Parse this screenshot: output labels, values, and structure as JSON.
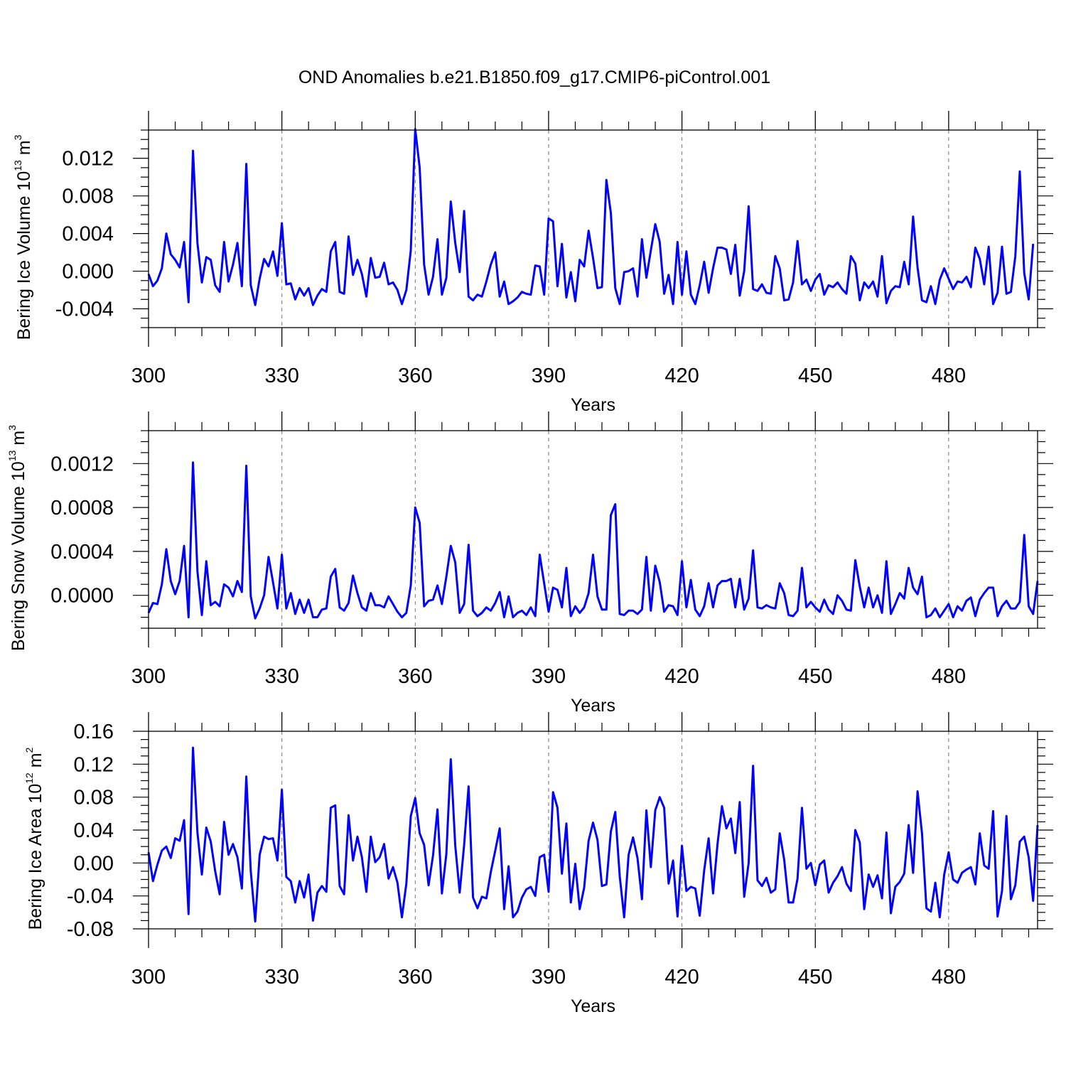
{
  "title": "OND Anomalies b.e21.B1850.f09_g17.CMIP6-piControl.001",
  "colors": {
    "line": "#0000ff",
    "axis": "#000000",
    "grid": "#000000"
  },
  "chart_data": [
    {
      "type": "line",
      "xlabel": "Years",
      "ylabel": {
        "prefix": "Bering Ice Volume 10",
        "sup1": "13",
        "mid": " m",
        "sup2": "3"
      },
      "xlim": [
        300,
        500
      ],
      "ylim": [
        -0.006,
        0.015
      ],
      "xticks": [
        300,
        330,
        360,
        390,
        420,
        450,
        480
      ],
      "xtick_labels": [
        "300",
        "330",
        "360",
        "390",
        "420",
        "450",
        "480"
      ],
      "yticks": [
        -0.004,
        0.0,
        0.004,
        0.008,
        0.012
      ],
      "ytick_labels": [
        "-0.004",
        "0.000",
        "0.004",
        "0.008",
        "0.012"
      ],
      "grid": "vertical dashed at x ticks",
      "series": [
        {
          "x_start": 300,
          "values": [
            -0.0003,
            -0.0016,
            -0.001,
            0.0003,
            0.004,
            0.0018,
            0.0012,
            0.0004,
            0.0031,
            -0.0033,
            0.0128,
            0.003,
            -0.0012,
            0.0015,
            0.0012,
            -0.0015,
            -0.0022,
            0.0031,
            -0.0011,
            0.0007,
            0.003,
            -0.0016,
            0.0114,
            -0.0015,
            -0.0036,
            -0.0008,
            0.0013,
            0.0005,
            0.0021,
            -0.0005,
            0.0051,
            -0.0014,
            -0.0013,
            -0.003,
            -0.0018,
            -0.0026,
            -0.0018,
            -0.0036,
            -0.0026,
            -0.0019,
            -0.0022,
            0.0021,
            0.0031,
            -0.0022,
            -0.0024,
            0.0037,
            -0.0004,
            0.0012,
            -0.0003,
            -0.0027,
            0.0014,
            -0.0007,
            -0.0006,
            0.0009,
            -0.0014,
            -0.0012,
            -0.002,
            -0.0035,
            -0.002,
            0.0022,
            0.0151,
            0.011,
            0.0007,
            -0.0025,
            -0.0006,
            0.0034,
            -0.0025,
            -0.0007,
            0.0074,
            0.003,
            -0.0001,
            0.0064,
            -0.0027,
            -0.0031,
            -0.0025,
            -0.0027,
            -0.0011,
            0.0007,
            0.002,
            -0.0027,
            -0.0011,
            -0.0035,
            -0.0032,
            -0.0028,
            -0.0022,
            -0.0024,
            -0.0025,
            0.0006,
            0.0005,
            -0.0025,
            0.0056,
            0.0053,
            -0.0016,
            0.0029,
            -0.0028,
            -0.0001,
            -0.0032,
            0.0012,
            0.0005,
            0.0043,
            0.0014,
            -0.0018,
            -0.0017,
            0.0097,
            0.0062,
            -0.0018,
            -0.0035,
            -0.0001,
            0.0,
            0.0003,
            -0.0027,
            0.0034,
            -0.0007,
            0.0022,
            0.005,
            0.0031,
            -0.0024,
            -0.0004,
            -0.0035,
            0.0031,
            -0.0025,
            0.0021,
            -0.0025,
            -0.0035,
            -0.0015,
            0.001,
            -0.0023,
            0.0003,
            0.0025,
            0.0025,
            0.0023,
            -0.0003,
            0.0028,
            -0.0026,
            0.0,
            0.0069,
            -0.0019,
            -0.0021,
            -0.0014,
            -0.0023,
            -0.0024,
            0.0016,
            0.0003,
            -0.0031,
            -0.003,
            -0.0012,
            0.0032,
            -0.0014,
            -0.0009,
            -0.0021,
            -0.0009,
            -0.0003,
            -0.0025,
            -0.0015,
            -0.0017,
            -0.0012,
            -0.0019,
            -0.0024,
            0.0016,
            0.0008,
            -0.0031,
            -0.0012,
            -0.0018,
            -0.0011,
            -0.0027,
            0.0016,
            -0.0034,
            -0.0021,
            -0.0016,
            -0.0017,
            0.001,
            -0.0014,
            0.0058,
            0.0004,
            -0.0031,
            -0.0033,
            -0.0016,
            -0.0035,
            -0.0009,
            0.0003,
            -0.0008,
            -0.0019,
            -0.0011,
            -0.0012,
            -0.0006,
            -0.0017,
            0.0025,
            0.0013,
            -0.0014,
            0.0026,
            -0.0035,
            -0.0023,
            0.0026,
            -0.0024,
            -0.0022,
            0.0016,
            0.0106,
            -0.0002,
            -0.003,
            0.0029
          ]
        }
      ]
    },
    {
      "type": "line",
      "xlabel": "Years",
      "ylabel": {
        "prefix": "Bering Snow Volume 10",
        "sup1": "13",
        "mid": " m",
        "sup2": "3"
      },
      "xlim": [
        300,
        500
      ],
      "ylim": [
        -0.0003,
        0.0015
      ],
      "xticks": [
        300,
        330,
        360,
        390,
        420,
        450,
        480
      ],
      "xtick_labels": [
        "300",
        "330",
        "360",
        "390",
        "420",
        "450",
        "480"
      ],
      "yticks": [
        0.0,
        0.0004,
        0.0008,
        0.0012
      ],
      "ytick_labels": [
        "0.0000",
        "0.0004",
        "0.0008",
        "0.0012"
      ],
      "grid": "vertical dashed at x ticks",
      "series": [
        {
          "x_start": 300,
          "values": [
            -0.00016,
            -7e-05,
            -8e-05,
            0.0001,
            0.00042,
            0.00013,
            1e-05,
            0.00013,
            0.00045,
            -0.0002,
            0.00121,
            0.00022,
            -0.00018,
            0.00031,
            -9e-05,
            -6e-05,
            -0.0001,
            0.0001,
            7e-05,
            -1e-05,
            0.00013,
            3e-05,
            0.00118,
            -1e-05,
            -0.00021,
            -0.00012,
            0.0,
            0.00035,
            0.00012,
            -0.00012,
            0.00037,
            -0.00012,
            2e-05,
            -0.00017,
            -4e-05,
            -0.00016,
            -4e-05,
            -0.0002,
            -0.0002,
            -0.00013,
            -0.00012,
            0.00017,
            0.00024,
            -0.00011,
            -0.00014,
            -7e-05,
            0.00018,
            2e-05,
            -0.00011,
            -0.00014,
            2e-05,
            -9e-05,
            -9e-05,
            -0.00011,
            -1e-05,
            -8e-05,
            -0.00015,
            -0.0002,
            -0.00016,
            9e-05,
            0.0008,
            0.00066,
            -0.0001,
            -5e-05,
            -4e-05,
            9e-05,
            -8e-05,
            0.00017,
            0.00045,
            0.0003,
            -0.00016,
            -8e-05,
            0.00046,
            -0.00014,
            -0.00019,
            -0.00016,
            -0.00011,
            -0.00014,
            -7e-05,
            3e-05,
            -0.0002,
            -1e-05,
            -0.0002,
            -0.00016,
            -0.00014,
            -0.00018,
            -0.00011,
            -0.00019,
            0.00037,
            0.00011,
            -0.00015,
            7e-05,
            5e-05,
            -0.00011,
            0.00025,
            -0.00019,
            -0.0001,
            -0.00016,
            -0.00011,
            2e-05,
            0.00037,
            -1e-05,
            -0.00013,
            -0.00013,
            0.00073,
            0.00083,
            -0.00017,
            -0.00018,
            -0.00014,
            -0.00014,
            -0.00017,
            -0.00013,
            0.00035,
            -0.00014,
            0.00027,
            0.00012,
            -0.00015,
            -9e-05,
            -0.0001,
            -0.00018,
            0.00031,
            -0.00011,
            0.00014,
            -0.00013,
            -0.00019,
            -0.0001,
            0.00011,
            -0.00011,
            9e-05,
            0.00013,
            0.00013,
            0.00015,
            -0.00011,
            0.00015,
            -0.00013,
            -3e-05,
            0.00041,
            -0.00011,
            -0.00012,
            -9e-05,
            -0.00011,
            -0.00012,
            0.00011,
            2e-05,
            -0.00018,
            -0.00019,
            -0.00014,
            0.00025,
            -0.00011,
            -6e-05,
            -0.00011,
            -0.00015,
            -4e-05,
            -0.00013,
            -0.00017,
            0.0,
            -5e-05,
            -0.00013,
            -0.00014,
            0.00032,
            8e-05,
            -0.00011,
            7e-05,
            -0.00011,
            -0.0,
            -0.00016,
            0.00031,
            -0.00017,
            -8e-05,
            2e-05,
            -3e-05,
            0.00025,
            7e-05,
            1e-05,
            0.00017,
            -0.0002,
            -0.00018,
            -0.00012,
            -0.0002,
            -0.00014,
            -8e-05,
            -0.0002,
            -0.0001,
            -0.00014,
            -5e-05,
            -2e-05,
            -0.00019,
            -4e-05,
            2e-05,
            7e-05,
            7e-05,
            -0.00019,
            -0.0001,
            -5e-05,
            -0.00012,
            -0.00012,
            -6e-05,
            0.00055,
            -0.0001,
            -0.00017,
            0.00013
          ]
        }
      ]
    },
    {
      "type": "line",
      "xlabel": "Years",
      "ylabel": {
        "prefix": "Bering Ice Area 10",
        "sup1": "12",
        "mid": " m",
        "sup2": "2"
      },
      "xlim": [
        300,
        500
      ],
      "ylim": [
        -0.08,
        0.16
      ],
      "xticks": [
        300,
        330,
        360,
        390,
        420,
        450,
        480
      ],
      "xtick_labels": [
        "300",
        "330",
        "360",
        "390",
        "420",
        "450",
        "480"
      ],
      "yticks": [
        -0.08,
        -0.04,
        0.0,
        0.04,
        0.08,
        0.12,
        0.16
      ],
      "ytick_labels": [
        "-0.08",
        "-0.04",
        "0.00",
        "0.04",
        "0.08",
        "0.12",
        "0.16"
      ],
      "grid": "vertical dashed at x ticks",
      "series": [
        {
          "x_start": 300,
          "values": [
            0.013,
            -0.022,
            -0.002,
            0.015,
            0.02,
            0.006,
            0.03,
            0.027,
            0.052,
            -0.062,
            0.14,
            0.037,
            -0.014,
            0.043,
            0.026,
            -0.01,
            -0.038,
            0.05,
            0.01,
            0.023,
            0.007,
            -0.031,
            0.105,
            -0.01,
            -0.071,
            0.01,
            0.032,
            0.029,
            0.03,
            0.003,
            0.089,
            -0.017,
            -0.022,
            -0.048,
            -0.022,
            -0.042,
            -0.014,
            -0.07,
            -0.036,
            -0.028,
            -0.035,
            0.067,
            0.07,
            -0.028,
            -0.038,
            0.058,
            0.003,
            0.032,
            0.007,
            -0.035,
            0.032,
            0.001,
            0.007,
            0.023,
            -0.019,
            -0.005,
            -0.024,
            -0.066,
            -0.025,
            0.057,
            0.079,
            0.036,
            0.022,
            -0.027,
            0.009,
            0.065,
            -0.037,
            0.011,
            0.126,
            0.021,
            -0.036,
            0.022,
            0.093,
            -0.042,
            -0.055,
            -0.041,
            -0.043,
            -0.011,
            0.015,
            0.042,
            -0.056,
            -0.004,
            -0.066,
            -0.059,
            -0.042,
            -0.032,
            -0.029,
            -0.04,
            0.007,
            0.01,
            -0.035,
            0.086,
            0.067,
            -0.013,
            0.048,
            -0.048,
            -0.001,
            -0.056,
            -0.03,
            0.027,
            0.049,
            0.028,
            -0.028,
            -0.026,
            0.038,
            0.062,
            -0.016,
            -0.066,
            0.01,
            0.031,
            0.006,
            -0.044,
            0.064,
            -0.005,
            0.064,
            0.08,
            0.067,
            -0.025,
            0.003,
            -0.065,
            0.021,
            -0.034,
            -0.029,
            -0.031,
            -0.064,
            -0.009,
            0.03,
            -0.037,
            0.023,
            0.069,
            0.042,
            0.054,
            0.012,
            0.074,
            -0.041,
            0.0,
            0.118,
            -0.021,
            -0.028,
            -0.018,
            -0.036,
            -0.032,
            0.036,
            0.004,
            -0.048,
            -0.048,
            -0.019,
            0.067,
            -0.007,
            0.0,
            -0.027,
            -0.002,
            0.003,
            -0.036,
            -0.024,
            -0.016,
            -0.005,
            -0.025,
            -0.034,
            0.04,
            0.025,
            -0.056,
            -0.014,
            -0.029,
            -0.015,
            -0.043,
            0.037,
            -0.061,
            -0.029,
            -0.023,
            -0.013,
            0.046,
            -0.012,
            0.087,
            0.036,
            -0.055,
            -0.059,
            -0.024,
            -0.066,
            -0.014,
            0.013,
            -0.02,
            -0.024,
            -0.012,
            -0.008,
            -0.005,
            -0.026,
            0.036,
            -0.003,
            -0.007,
            0.063,
            -0.065,
            -0.034,
            0.057,
            -0.044,
            -0.027,
            0.026,
            0.032,
            0.007,
            -0.046,
            0.046
          ]
        }
      ]
    }
  ]
}
